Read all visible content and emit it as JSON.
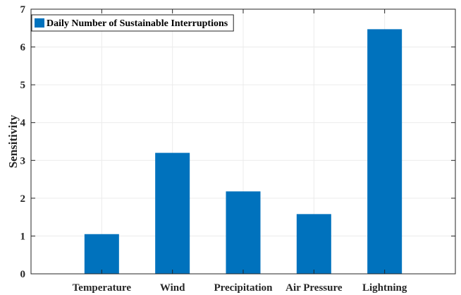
{
  "chart_data": {
    "type": "bar",
    "categories": [
      "Temperature",
      "Wind",
      "Precipitation",
      "Air Pressure",
      "Lightning"
    ],
    "series": [
      {
        "name": "Daily Number of Sustainable Interruptions",
        "values": [
          1.05,
          3.2,
          2.18,
          1.58,
          6.47
        ]
      }
    ],
    "xlabel": "",
    "ylabel": "Sensitivity",
    "ylim": [
      0,
      7
    ],
    "yticks": [
      "0",
      "1",
      "2",
      "3",
      "4",
      "5",
      "6",
      "7"
    ],
    "grid": true,
    "legend_position": "top-left",
    "colors": {
      "bar": "#0072BD",
      "axis": "#262626",
      "grid": "#ebebeb"
    }
  }
}
